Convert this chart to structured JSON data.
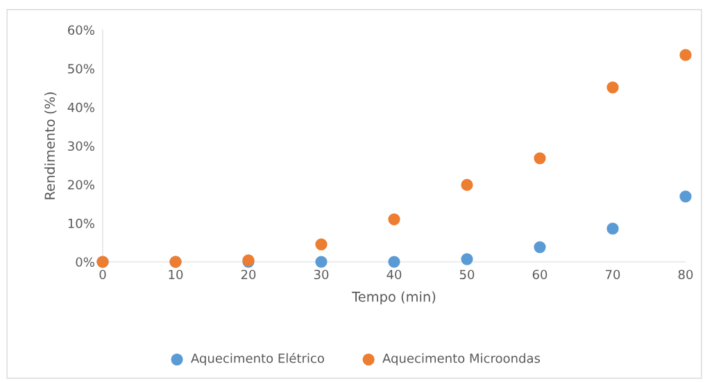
{
  "chart_data": {
    "type": "scatter",
    "xlabel": "Tempo (min)",
    "ylabel": "Rendimento (%)",
    "x": [
      0,
      10,
      20,
      30,
      40,
      50,
      60,
      70,
      80
    ],
    "series": [
      {
        "name": "Aquecimento Elétrico",
        "color": "#5b9bd5",
        "values": [
          0,
          0,
          0,
          0,
          0,
          0.7,
          3.8,
          8.6,
          16.9
        ]
      },
      {
        "name": "Aquecimento Microondas",
        "color": "#ed7d31",
        "values": [
          0,
          0,
          0.4,
          4.5,
          11.0,
          19.9,
          26.8,
          45.1,
          53.5
        ]
      }
    ],
    "xlim": [
      0,
      80
    ],
    "xticks": [
      0,
      10,
      20,
      30,
      40,
      50,
      60,
      70,
      80
    ],
    "ylim": [
      0,
      60
    ],
    "yticks": [
      {
        "value": 0,
        "label": "0%"
      },
      {
        "value": 10,
        "label": "10%"
      },
      {
        "value": 20,
        "label": "20%"
      },
      {
        "value": 30,
        "label": "30%"
      },
      {
        "value": 40,
        "label": "40%"
      },
      {
        "value": 50,
        "label": "50%"
      },
      {
        "value": 60,
        "label": "60%"
      }
    ],
    "grid": false,
    "legend": "bottom",
    "marker": "circle"
  }
}
